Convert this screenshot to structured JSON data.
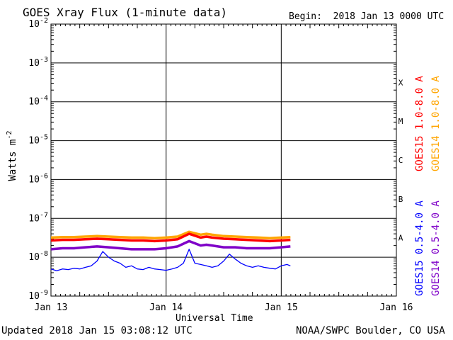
{
  "header": {
    "title": "GOES Xray Flux (1-minute data)",
    "begin": "Begin:  2018 Jan 13 0000 UTC"
  },
  "footer": {
    "updated": "Updated 2018 Jan 15 03:08:12 UTC",
    "credit": "NOAA/SWPC Boulder, CO USA"
  },
  "chart_data": {
    "type": "line",
    "title": "GOES Xray Flux (1-minute data)",
    "xlabel": "Universal Time",
    "ylabel": "Watts m",
    "ylabel_sup": "-2",
    "y_scale": "log",
    "ylim": [
      1e-09,
      0.01
    ],
    "x_unit": "days since Jan 13 0000 UTC",
    "xlim": [
      0,
      3
    ],
    "grid": true,
    "x_ticks": [
      {
        "x": 0,
        "label": "Jan 13"
      },
      {
        "x": 1,
        "label": "Jan 14"
      },
      {
        "x": 2,
        "label": "Jan 15"
      },
      {
        "x": 3,
        "label": "Jan 16"
      }
    ],
    "y_ticks": [
      {
        "exp": -2,
        "base": "10",
        "sup": "-2"
      },
      {
        "exp": -3,
        "base": "10",
        "sup": "-3"
      },
      {
        "exp": -4,
        "base": "10",
        "sup": "-4"
      },
      {
        "exp": -5,
        "base": "10",
        "sup": "-5"
      },
      {
        "exp": -6,
        "base": "10",
        "sup": "-6"
      },
      {
        "exp": -7,
        "base": "10",
        "sup": "-7"
      },
      {
        "exp": -8,
        "base": "10",
        "sup": "-8"
      },
      {
        "exp": -9,
        "base": "10",
        "sup": "-9"
      }
    ],
    "flare_classes": [
      {
        "label": "X",
        "exp": -4
      },
      {
        "label": "M",
        "exp": -5
      },
      {
        "label": "C",
        "exp": -6
      },
      {
        "label": "B",
        "exp": -7
      },
      {
        "label": "A",
        "exp": -8
      }
    ],
    "legend_right": [
      {
        "name": "GOES15 1.0-8.0 A",
        "color": "#ff0000"
      },
      {
        "name": "GOES14 1.0-8.0 A",
        "color": "#ffa500"
      }
    ],
    "legend_left": [
      {
        "name": "GOES15 0.5-4.0 A",
        "color": "#0000ff"
      },
      {
        "name": "GOES14 0.5-4.0 A",
        "color": "#7f00c8"
      }
    ],
    "series": [
      {
        "name": "GOES14 1.0-8.0 A",
        "color": "#ffa500",
        "x": [
          0,
          0.1,
          0.2,
          0.3,
          0.4,
          0.5,
          0.6,
          0.7,
          0.8,
          0.9,
          1.0,
          1.1,
          1.2,
          1.3,
          1.35,
          1.4,
          1.5,
          1.6,
          1.7,
          1.8,
          1.9,
          2.0,
          2.08
        ],
        "y": [
          3.2e-08,
          3.3e-08,
          3.3e-08,
          3.4e-08,
          3.5e-08,
          3.4e-08,
          3.3e-08,
          3.2e-08,
          3.2e-08,
          3.1e-08,
          3.2e-08,
          3.4e-08,
          4.5e-08,
          3.8e-08,
          4e-08,
          3.8e-08,
          3.5e-08,
          3.4e-08,
          3.3e-08,
          3.2e-08,
          3.1e-08,
          3.2e-08,
          3.3e-08
        ]
      },
      {
        "name": "GOES15 1.0-8.0 A",
        "color": "#ff0000",
        "x": [
          0,
          0.1,
          0.2,
          0.3,
          0.4,
          0.5,
          0.6,
          0.7,
          0.8,
          0.9,
          1.0,
          1.1,
          1.2,
          1.3,
          1.35,
          1.4,
          1.5,
          1.6,
          1.7,
          1.8,
          1.9,
          2.0,
          2.08
        ],
        "y": [
          2.7e-08,
          2.8e-08,
          2.8e-08,
          2.9e-08,
          3e-08,
          2.9e-08,
          2.8e-08,
          2.7e-08,
          2.7e-08,
          2.6e-08,
          2.7e-08,
          2.9e-08,
          4e-08,
          3.2e-08,
          3.4e-08,
          3.2e-08,
          3e-08,
          2.9e-08,
          2.8e-08,
          2.7e-08,
          2.6e-08,
          2.7e-08,
          2.8e-08
        ]
      },
      {
        "name": "GOES14 0.5-4.0 A",
        "color": "#7f00c8",
        "x": [
          0,
          0.1,
          0.2,
          0.3,
          0.4,
          0.5,
          0.6,
          0.7,
          0.8,
          0.9,
          1.0,
          1.1,
          1.2,
          1.3,
          1.35,
          1.4,
          1.5,
          1.6,
          1.7,
          1.8,
          1.9,
          2.0,
          2.08
        ],
        "y": [
          1.6e-08,
          1.7e-08,
          1.7e-08,
          1.8e-08,
          1.9e-08,
          1.8e-08,
          1.7e-08,
          1.6e-08,
          1.6e-08,
          1.6e-08,
          1.7e-08,
          1.9e-08,
          2.6e-08,
          2e-08,
          2.1e-08,
          2e-08,
          1.8e-08,
          1.8e-08,
          1.7e-08,
          1.7e-08,
          1.7e-08,
          1.8e-08,
          1.9e-08
        ]
      },
      {
        "name": "GOES15 0.5-4.0 A",
        "color": "#0000ff",
        "x": [
          0,
          0.05,
          0.1,
          0.15,
          0.2,
          0.25,
          0.3,
          0.35,
          0.4,
          0.45,
          0.5,
          0.55,
          0.6,
          0.65,
          0.7,
          0.75,
          0.8,
          0.85,
          0.9,
          0.95,
          1.0,
          1.05,
          1.1,
          1.15,
          1.2,
          1.25,
          1.3,
          1.35,
          1.4,
          1.45,
          1.5,
          1.55,
          1.6,
          1.65,
          1.7,
          1.75,
          1.8,
          1.85,
          1.9,
          1.95,
          2.0,
          2.05,
          2.08
        ],
        "y": [
          5e-09,
          4.5e-09,
          5e-09,
          4.8e-09,
          5.2e-09,
          5e-09,
          5.5e-09,
          6e-09,
          8e-09,
          1.4e-08,
          1e-08,
          8e-09,
          7e-09,
          5.5e-09,
          6e-09,
          5e-09,
          4.8e-09,
          5.5e-09,
          5e-09,
          4.8e-09,
          4.6e-09,
          5e-09,
          5.5e-09,
          7e-09,
          1.6e-08,
          7e-09,
          6.5e-09,
          6e-09,
          5.5e-09,
          6e-09,
          8e-09,
          1.2e-08,
          9e-09,
          7e-09,
          6e-09,
          5.5e-09,
          6e-09,
          5.5e-09,
          5.2e-09,
          5e-09,
          6e-09,
          6.5e-09,
          6e-09
        ]
      }
    ]
  }
}
